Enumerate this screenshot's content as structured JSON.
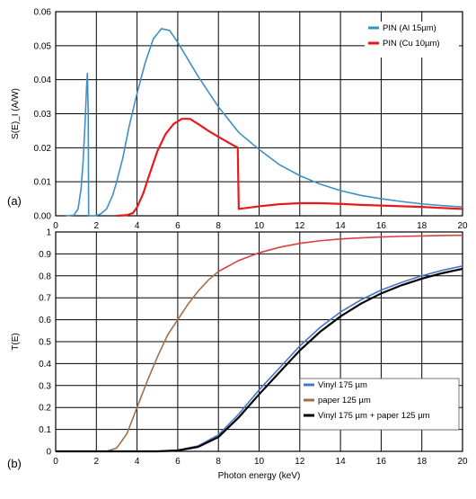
{
  "chart_data": [
    {
      "type": "line",
      "panel_label": "(a)",
      "xlabel": "",
      "ylabel": "S(E)_I (A/W)",
      "xlim": [
        0,
        20
      ],
      "ylim": [
        0,
        0.06
      ],
      "x_ticks": [
        "0",
        "2",
        "4",
        "6",
        "8",
        "10",
        "12",
        "14",
        "16",
        "18",
        "20"
      ],
      "y_ticks": [
        "0.00",
        "0.01",
        "0.02",
        "0.03",
        "0.04",
        "0.05",
        "0.06"
      ],
      "grid": "on",
      "legend_position": "top-right",
      "series": [
        {
          "name": "PIN (Al 15µm)",
          "color": "#3d8fc6",
          "points": [
            [
              0.5,
              0
            ],
            [
              0.9,
              0.0002
            ],
            [
              1.1,
              0.002
            ],
            [
              1.25,
              0.008
            ],
            [
              1.35,
              0.016
            ],
            [
              1.45,
              0.028
            ],
            [
              1.52,
              0.038
            ],
            [
              1.56,
              0.042
            ],
            [
              1.6,
              0.03
            ],
            [
              1.62,
              0
            ],
            [
              1.9,
              0
            ],
            [
              2.0,
              0.0001
            ],
            [
              2.2,
              0.0005
            ],
            [
              2.5,
              0.002
            ],
            [
              2.8,
              0.006
            ],
            [
              3.0,
              0.01
            ],
            [
              3.3,
              0.017
            ],
            [
              3.6,
              0.026
            ],
            [
              4.0,
              0.036
            ],
            [
              4.4,
              0.045
            ],
            [
              4.8,
              0.052
            ],
            [
              5.2,
              0.055
            ],
            [
              5.6,
              0.0545
            ],
            [
              6.0,
              0.051
            ],
            [
              6.5,
              0.046
            ],
            [
              7.0,
              0.041
            ],
            [
              7.5,
              0.0365
            ],
            [
              8.0,
              0.032
            ],
            [
              9.0,
              0.0245
            ],
            [
              10.0,
              0.0195
            ],
            [
              11.0,
              0.015
            ],
            [
              12.0,
              0.0118
            ],
            [
              13.0,
              0.0093
            ],
            [
              14.0,
              0.0074
            ],
            [
              15.0,
              0.006
            ],
            [
              16.0,
              0.005
            ],
            [
              17.0,
              0.0042
            ],
            [
              18.0,
              0.0035
            ],
            [
              19.0,
              0.003
            ],
            [
              20.0,
              0.0026
            ]
          ]
        },
        {
          "name": "PIN (Cu 10µm)",
          "color": "#e8191c",
          "points": [
            [
              3.0,
              0
            ],
            [
              3.5,
              0.0002
            ],
            [
              3.8,
              0.0008
            ],
            [
              4.0,
              0.0025
            ],
            [
              4.3,
              0.0065
            ],
            [
              4.6,
              0.012
            ],
            [
              5.0,
              0.019
            ],
            [
              5.4,
              0.024
            ],
            [
              5.8,
              0.027
            ],
            [
              6.2,
              0.0285
            ],
            [
              6.6,
              0.0285
            ],
            [
              7.0,
              0.027
            ],
            [
              7.5,
              0.025
            ],
            [
              8.0,
              0.0232
            ],
            [
              8.5,
              0.0215
            ],
            [
              8.95,
              0.02
            ],
            [
              9.0,
              0.002
            ],
            [
              10.0,
              0.0028
            ],
            [
              11.0,
              0.0034
            ],
            [
              12.0,
              0.0037
            ],
            [
              13.0,
              0.0037
            ],
            [
              14.0,
              0.0035
            ],
            [
              15.0,
              0.0032
            ],
            [
              16.0,
              0.003
            ],
            [
              17.0,
              0.0028
            ],
            [
              18.0,
              0.0026
            ],
            [
              19.0,
              0.0023
            ],
            [
              20.0,
              0.002
            ]
          ]
        }
      ]
    },
    {
      "type": "line",
      "panel_label": "(b)",
      "xlabel": "Photon energy (keV)",
      "ylabel": "T(E)",
      "xlim": [
        0,
        20
      ],
      "ylim": [
        0,
        1
      ],
      "x_ticks": [
        "0",
        "2",
        "4",
        "6",
        "8",
        "10",
        "12",
        "14",
        "16",
        "18",
        "20"
      ],
      "y_ticks": [
        "0",
        "0.1",
        "0.2",
        "0.3",
        "0.4",
        "0.5",
        "0.6",
        "0.7",
        "0.8",
        "0.9",
        "1"
      ],
      "grid": "on",
      "legend_position": "bottom-right",
      "series": [
        {
          "name": "Vinyl 175 µm",
          "color": "#4a73c8",
          "points": [
            [
              0,
              0
            ],
            [
              5,
              0
            ],
            [
              6,
              0.005
            ],
            [
              7,
              0.025
            ],
            [
              8,
              0.075
            ],
            [
              9,
              0.17
            ],
            [
              10,
              0.28
            ],
            [
              11,
              0.38
            ],
            [
              12,
              0.48
            ],
            [
              13,
              0.565
            ],
            [
              14,
              0.635
            ],
            [
              15,
              0.69
            ],
            [
              16,
              0.735
            ],
            [
              17,
              0.77
            ],
            [
              18,
              0.8
            ],
            [
              19,
              0.825
            ],
            [
              20,
              0.845
            ]
          ]
        },
        {
          "name": "paper 125 µm",
          "color": "#a0704b",
          "color_high": "#d94040",
          "points": [
            [
              0,
              0
            ],
            [
              2.5,
              0
            ],
            [
              3.0,
              0.015
            ],
            [
              3.5,
              0.08
            ],
            [
              4.0,
              0.2
            ],
            [
              4.5,
              0.32
            ],
            [
              5.0,
              0.43
            ],
            [
              5.5,
              0.53
            ],
            [
              6.0,
              0.6
            ],
            [
              6.5,
              0.67
            ],
            [
              7.0,
              0.73
            ],
            [
              7.5,
              0.78
            ],
            [
              8.0,
              0.82
            ],
            [
              9.0,
              0.87
            ],
            [
              10.0,
              0.905
            ],
            [
              11.0,
              0.93
            ],
            [
              12.0,
              0.948
            ],
            [
              13.0,
              0.96
            ],
            [
              14.0,
              0.968
            ],
            [
              15.0,
              0.973
            ],
            [
              16.0,
              0.977
            ],
            [
              17.0,
              0.98
            ],
            [
              18.0,
              0.982
            ],
            [
              19.0,
              0.984
            ],
            [
              20.0,
              0.985
            ]
          ]
        },
        {
          "name": "Vinyl 175 µm + paper 125 µm",
          "color": "#000000",
          "points": [
            [
              0,
              0
            ],
            [
              5,
              0
            ],
            [
              6,
              0.004
            ],
            [
              7,
              0.02
            ],
            [
              8,
              0.065
            ],
            [
              9,
              0.155
            ],
            [
              10,
              0.26
            ],
            [
              11,
              0.36
            ],
            [
              12,
              0.46
            ],
            [
              13,
              0.545
            ],
            [
              14,
              0.615
            ],
            [
              15,
              0.673
            ],
            [
              16,
              0.72
            ],
            [
              17,
              0.757
            ],
            [
              18,
              0.787
            ],
            [
              19,
              0.812
            ],
            [
              20,
              0.832
            ]
          ]
        }
      ]
    }
  ]
}
